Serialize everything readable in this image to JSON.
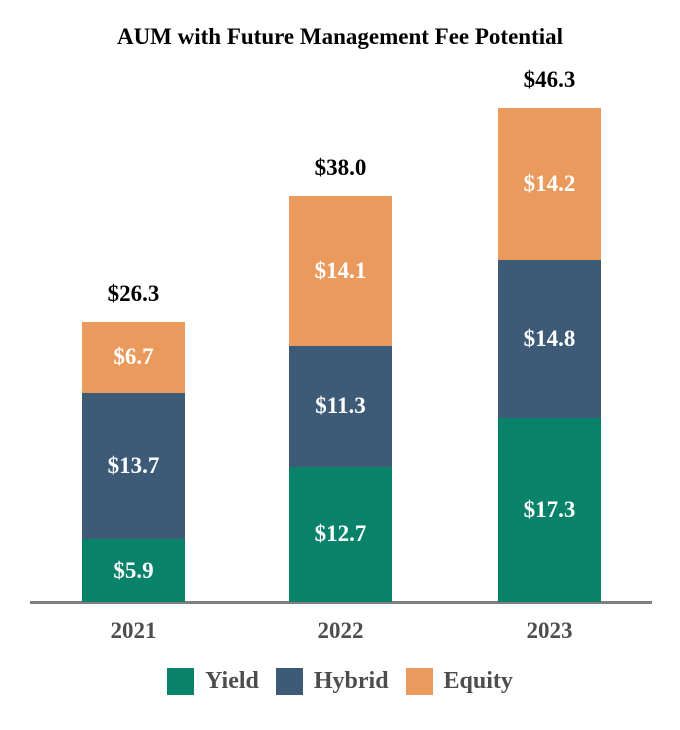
{
  "chart_data": {
    "type": "bar",
    "variant": "stacked",
    "title": "AUM with Future Management Fee Potential",
    "categories": [
      "2021",
      "2022",
      "2023"
    ],
    "series": [
      {
        "name": "Yield",
        "color": "#088268",
        "values": [
          5.9,
          12.7,
          17.3
        ]
      },
      {
        "name": "Hybrid",
        "color": "#3D5A77",
        "values": [
          13.7,
          11.3,
          14.8
        ]
      },
      {
        "name": "Equity",
        "color": "#EB9A5D",
        "values": [
          6.7,
          14.1,
          14.2
        ]
      }
    ],
    "totals": [
      26.3,
      38.0,
      46.3
    ],
    "value_prefix": "$",
    "value_decimals": 1,
    "inside_label_color": "#FFFFFF",
    "total_label_color": "#000000",
    "category_label_color": "#4D4D4D",
    "axis_line_color": "#7F7F7F",
    "background_color": "#FFFFFF",
    "grid": false,
    "legend_position": "bottom",
    "ylim": [
      0,
      50
    ]
  }
}
